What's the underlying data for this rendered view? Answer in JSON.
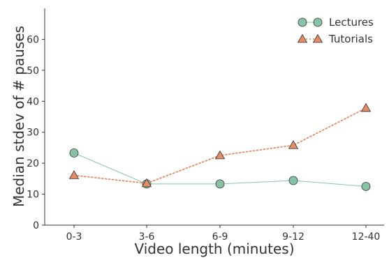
{
  "chart_data": {
    "type": "line",
    "categories": [
      "0-3",
      "3-6",
      "6-9",
      "9-12",
      "12-40"
    ],
    "xlabel": "Video length (minutes)",
    "ylabel": "Median stdev of # pauses",
    "ylim": [
      0,
      70
    ],
    "yticks": [
      0,
      10,
      20,
      30,
      40,
      50,
      60
    ],
    "grid": false,
    "legend_position": "top-right",
    "series": [
      {
        "name": "Lectures",
        "values": [
          23.3,
          13.3,
          13.3,
          14.4,
          12.5
        ],
        "color": "#88c3a7",
        "line": "solid",
        "marker": "circle"
      },
      {
        "name": "Tutorials",
        "values": [
          16.1,
          13.5,
          22.5,
          25.8,
          37.8
        ],
        "color": "#e38c68",
        "line": "dotted",
        "marker": "triangle"
      }
    ]
  }
}
